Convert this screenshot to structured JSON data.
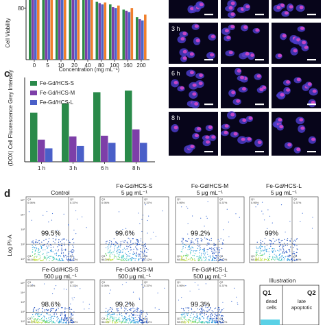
{
  "panels": {
    "c": "c",
    "d": "d"
  },
  "panel_a": {
    "ylabel": "Cell Viability",
    "ytick_top": "80",
    "xlabel": "Concentration (mg mL⁻¹)",
    "categories": [
      "0",
      "5",
      "10",
      "20",
      "40",
      "80",
      "100",
      "160",
      "200"
    ]
  },
  "chart_data": [
    {
      "type": "bar",
      "title": "",
      "xlabel": "Concentration (mg mL⁻¹)",
      "ylabel": "Cell Viability",
      "categories": [
        "0",
        "5",
        "10",
        "20",
        "40",
        "80",
        "100",
        "160",
        "200"
      ],
      "series": [
        {
          "color": "#2e8b45",
          "values": [
            100,
            100,
            100,
            99,
            98,
            90,
            86,
            78,
            66
          ]
        },
        {
          "color": "#7b3fa8",
          "values": [
            100,
            100,
            99,
            98,
            96,
            88,
            82,
            76,
            63
          ]
        },
        {
          "color": "#4d64c8",
          "values": [
            100,
            99,
            99,
            97,
            95,
            86,
            80,
            74,
            61
          ]
        },
        {
          "color": "#f07f2c",
          "values": [
            100,
            100,
            100,
            99,
            97,
            89,
            84,
            80,
            70
          ]
        }
      ],
      "ylim": [
        0,
        110
      ]
    },
    {
      "type": "bar",
      "title": "",
      "xlabel": "",
      "ylabel": "(DOX) Cell Fluorescence Grey Intensity",
      "categories": [
        "1 h",
        "3 h",
        "6 h",
        "8 h"
      ],
      "series": [
        {
          "name": "Fe-Gd/HCS-S",
          "color": "#2a8a4a",
          "values": [
            41,
            47,
            54,
            55
          ]
        },
        {
          "name": "Fe-Gd/HCS-M",
          "color": "#7d3fa8",
          "values": [
            24,
            26,
            26.5,
            30.5
          ]
        },
        {
          "name": "Fe-Gd/HCS-L",
          "color": "#4a5fc8",
          "values": [
            18.5,
            20,
            22,
            22
          ]
        }
      ],
      "ylim": [
        10,
        62
      ]
    }
  ],
  "microscopy": {
    "row_labels": [
      "3 h",
      "6 h",
      "8 h"
    ]
  },
  "flow": {
    "ylabel": "Log PI-A",
    "plots": [
      {
        "title1": "Control",
        "title2": "",
        "pct": "99.5%"
      },
      {
        "title1": "Fe-Gd/HCS-S",
        "title2": "5 μg mL⁻¹",
        "pct": "99.6%"
      },
      {
        "title1": "Fe-Gd/HCS-M",
        "title2": "5 μg mL⁻¹",
        "pct": "99.2%"
      },
      {
        "title1": "Fe-Gd/HCS-L",
        "title2": "5 μg mL⁻¹",
        "pct": "99%"
      },
      {
        "title1": "Fe-Gd/HCS-S",
        "title2": "500 μg mL⁻¹",
        "pct": "98.6%"
      },
      {
        "title1": "Fe-Gd/HCS-M",
        "title2": "500 μg mL⁻¹",
        "pct": "99.2%"
      },
      {
        "title1": "Fe-Gd/HCS-L",
        "title2": "500 μg mL⁻¹",
        "pct": "99.3%"
      }
    ],
    "quadrant_labels": [
      "Q1",
      "Q2",
      "Q3",
      "Q4"
    ],
    "quadrant_values": [
      "0.95%",
      "0.37%",
      "98.5%",
      "0.12%"
    ],
    "tick_labels": [
      "10⁵",
      "10⁴",
      "10³",
      "10²",
      "10¹"
    ],
    "illustration": {
      "title": "Illustration",
      "q1": "Q1",
      "q2": "Q2",
      "q1_text1": "dead",
      "q1_text2": "cells",
      "q2_text1": "late",
      "q2_text2": "apoptotic"
    }
  }
}
